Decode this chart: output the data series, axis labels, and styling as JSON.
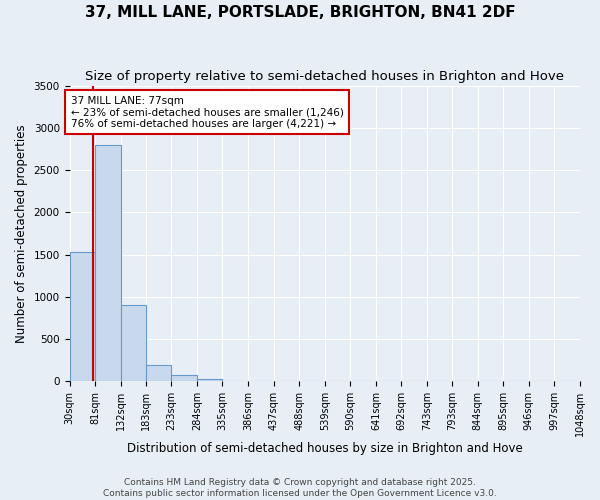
{
  "title": "37, MILL LANE, PORTSLADE, BRIGHTON, BN41 2DF",
  "subtitle": "Size of property relative to semi-detached houses in Brighton and Hove",
  "xlabel": "Distribution of semi-detached houses by size in Brighton and Hove",
  "ylabel": "Number of semi-detached properties",
  "bin_edges": [
    30,
    81,
    132,
    183,
    233,
    284,
    335,
    386,
    437,
    488,
    539,
    590,
    641,
    692,
    743,
    793,
    844,
    895,
    946,
    997,
    1048
  ],
  "bar_heights": [
    1530,
    2800,
    900,
    200,
    80,
    30,
    5,
    1,
    0,
    0,
    0,
    0,
    0,
    0,
    0,
    0,
    0,
    0,
    0,
    0
  ],
  "bar_color": "#c9d9ed",
  "bar_edge_color": "#6699cc",
  "property_size": 77,
  "property_line_color": "#cc0000",
  "annotation_line1": "37 MILL LANE: 77sqm",
  "annotation_line2": "← 23% of semi-detached houses are smaller (1,246)",
  "annotation_line3": "76% of semi-detached houses are larger (4,221) →",
  "annotation_box_color": "#ffffff",
  "annotation_box_edge_color": "#cc0000",
  "ylim": [
    0,
    3500
  ],
  "yticks": [
    0,
    500,
    1000,
    1500,
    2000,
    2500,
    3000,
    3500
  ],
  "background_color": "#e8eef5",
  "grid_color": "#ffffff",
  "title_fontsize": 11,
  "subtitle_fontsize": 9.5,
  "tick_fontsize": 7.5,
  "label_fontsize": 8.5,
  "footer_text": "Contains HM Land Registry data © Crown copyright and database right 2025.\nContains public sector information licensed under the Open Government Licence v3.0.",
  "footer_fontsize": 6.5
}
